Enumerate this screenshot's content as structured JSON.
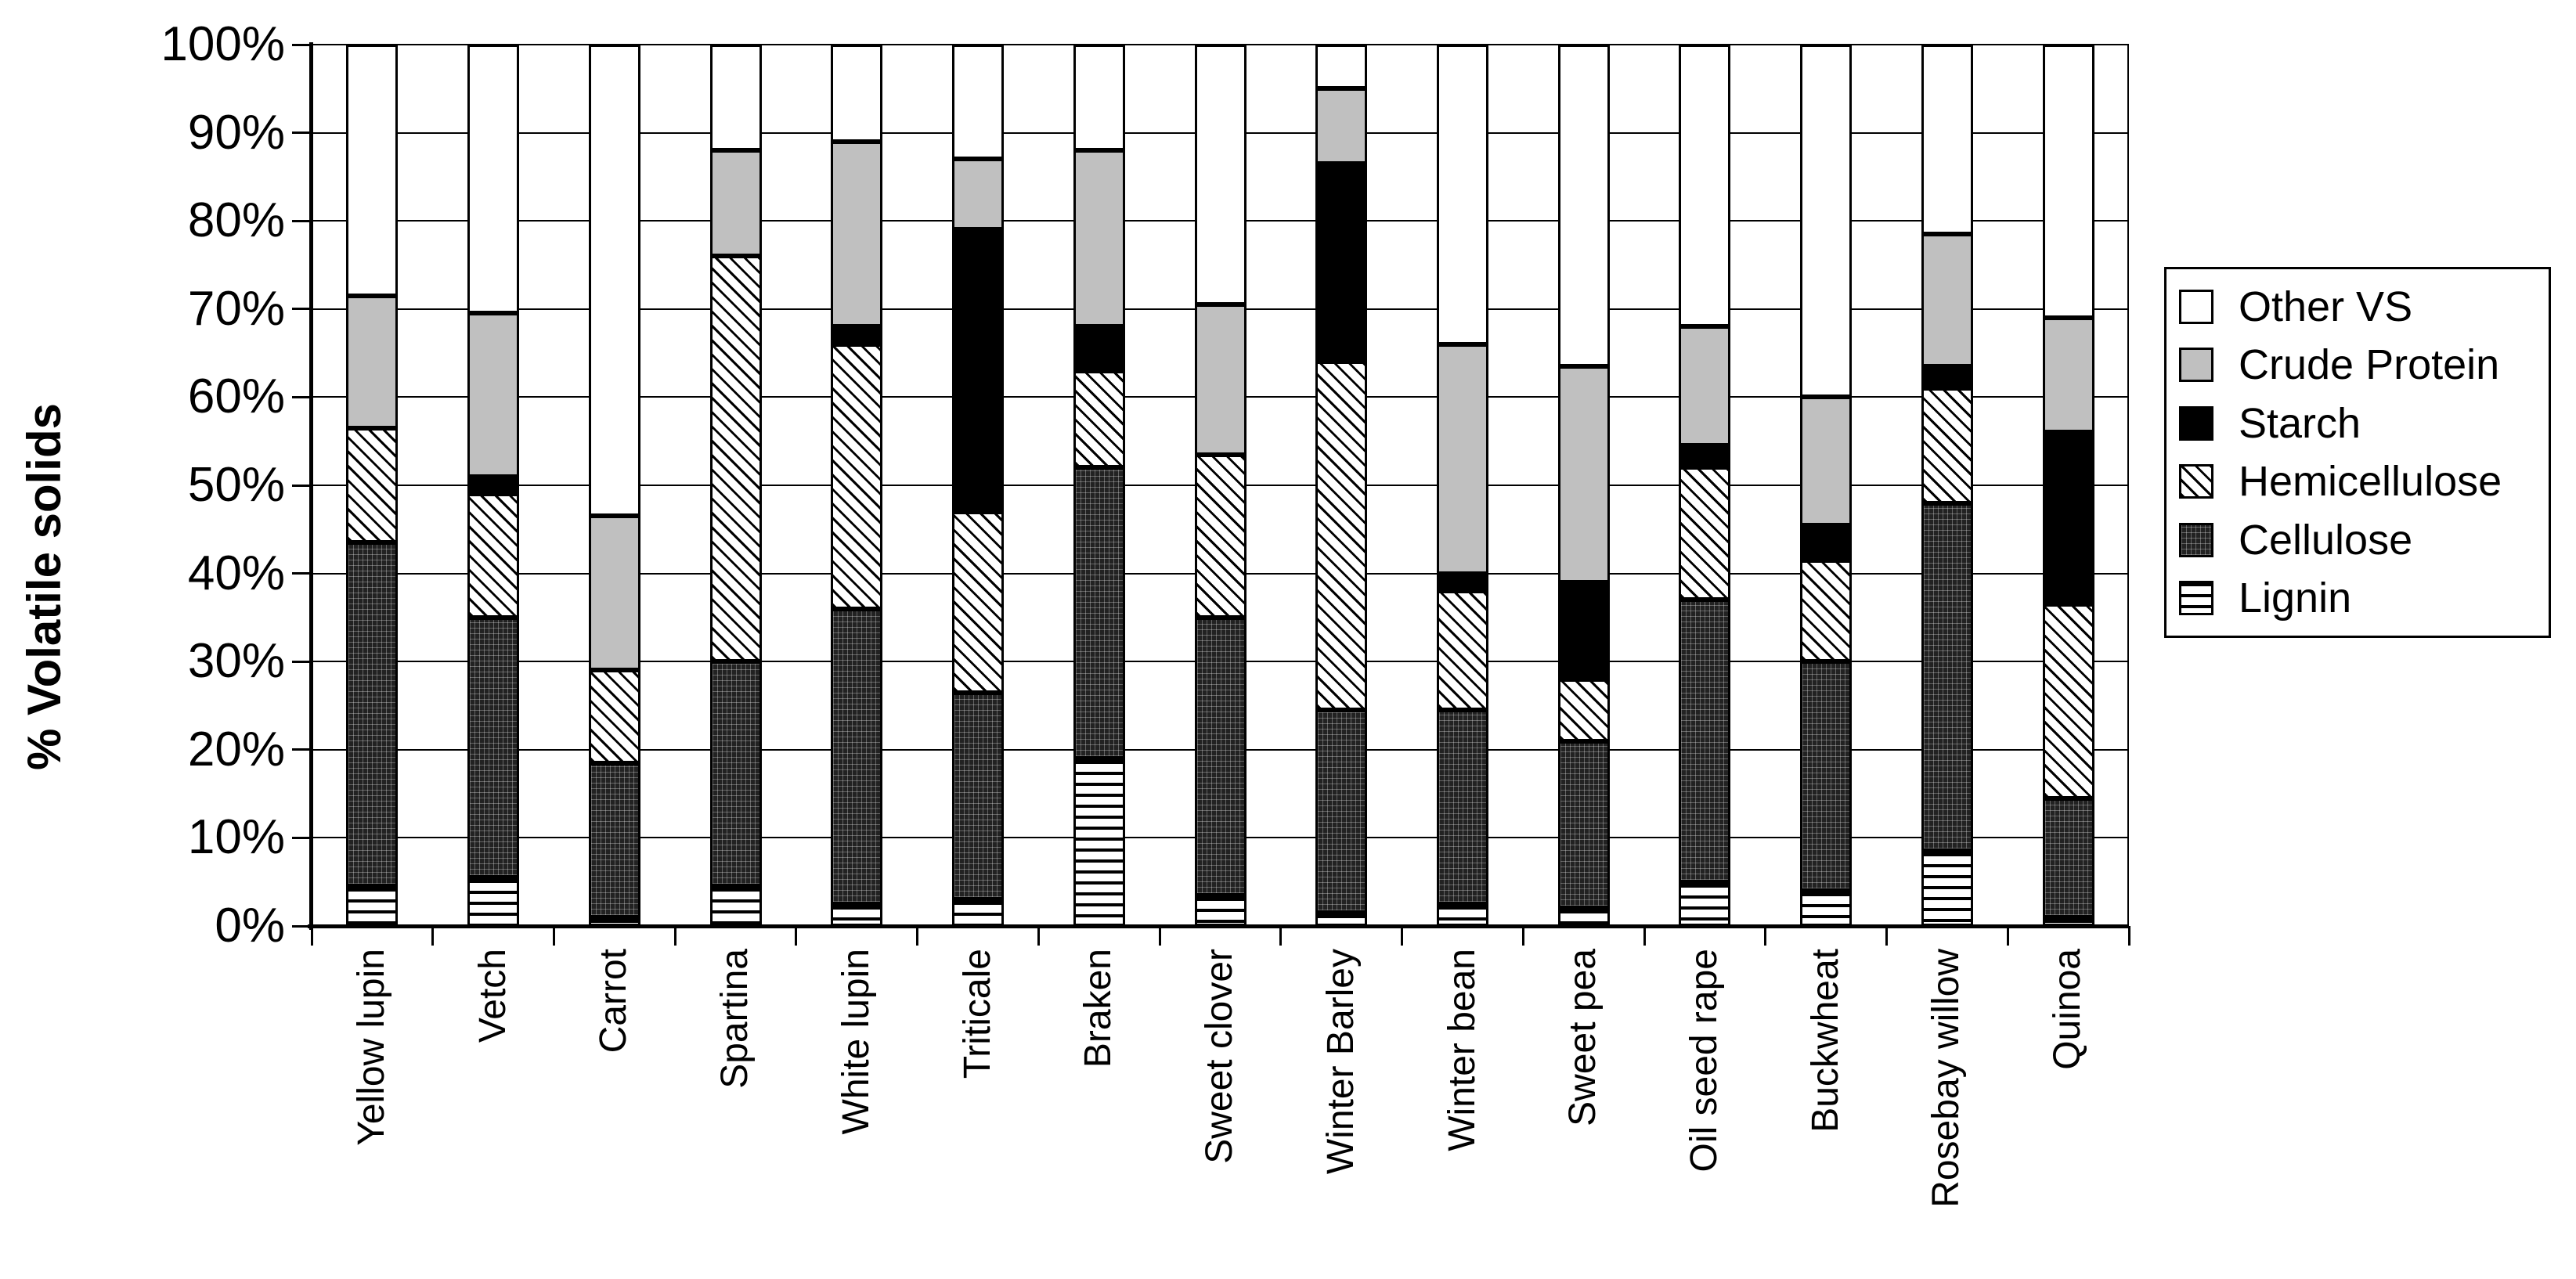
{
  "chart_data": {
    "type": "bar",
    "stacked": true,
    "title": "",
    "xlabel": "",
    "ylabel": "% Volatile solids",
    "ylim": [
      0,
      100
    ],
    "grid": true,
    "legend_position": "right",
    "yticks": [
      "0%",
      "10%",
      "20%",
      "30%",
      "40%",
      "50%",
      "60%",
      "70%",
      "80%",
      "90%",
      "100%"
    ],
    "categories": [
      "Yellow lupin",
      "Vetch",
      "Carrot",
      "Spartina",
      "White lupin",
      "Triticale",
      "Braken",
      "Sweet clover",
      "Winter Barley",
      "Winter bean",
      "Sweet pea",
      "Oil seed rape",
      "Buckwheat",
      "Rosebay willow",
      "Quinoa"
    ],
    "series": [
      {
        "name": "Lignin",
        "pattern": "horizontal-lines",
        "values": [
          4.5,
          5.5,
          1,
          4.5,
          2.5,
          3,
          19,
          3.5,
          1.5,
          2.5,
          2,
          5,
          4,
          8.5,
          1
        ]
      },
      {
        "name": "Cellulose",
        "pattern": "dark-dots",
        "values": [
          39,
          29.5,
          17.5,
          25.5,
          33.5,
          23.5,
          33,
          31.5,
          23,
          22,
          19,
          32,
          26,
          39.5,
          13.5
        ]
      },
      {
        "name": "Hemicellulose",
        "pattern": "diagonal-hatch",
        "values": [
          13,
          14,
          10.5,
          46,
          30,
          20.5,
          11,
          18.5,
          39.5,
          13.5,
          7,
          15,
          11.5,
          13,
          22
        ]
      },
      {
        "name": "Starch",
        "pattern": "solid-black",
        "values": [
          0,
          2,
          0,
          0,
          2,
          32,
          5,
          0,
          22.5,
          2,
          11,
          2.5,
          4,
          2.5,
          19.5
        ]
      },
      {
        "name": "Crude Protein",
        "pattern": "solid-gray",
        "values": [
          15,
          18.5,
          17.5,
          12,
          21,
          8,
          20,
          17,
          8.5,
          26,
          24.5,
          13.5,
          14.5,
          15,
          13
        ]
      },
      {
        "name": "Other VS",
        "pattern": "solid-white",
        "values": [
          28.5,
          30.5,
          53.5,
          12,
          11,
          13,
          12,
          29.5,
          5,
          34,
          36.5,
          32,
          40,
          21.5,
          31
        ]
      }
    ],
    "colors": {
      "crude_protein": "#c0c0c0",
      "starch": "#000000",
      "other_vs": "#ffffff",
      "ink": "#000000"
    }
  }
}
